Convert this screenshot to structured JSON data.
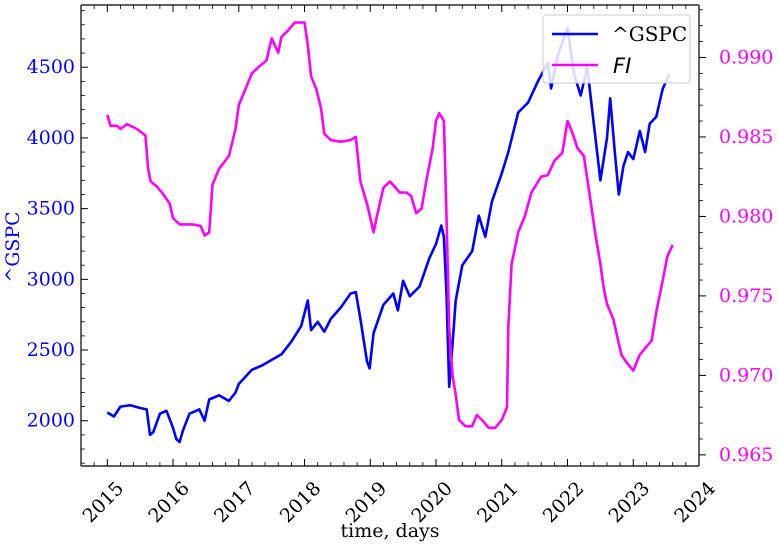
{
  "chart_data": {
    "type": "line",
    "xlabel": "time, days",
    "ylabel_left": "^GSPC",
    "ylabel_right": "",
    "x_ticks": [
      "2015",
      "2016",
      "2017",
      "2018",
      "2019",
      "2020",
      "2021",
      "2022",
      "2023",
      "2024"
    ],
    "y_left_ticks": [
      "2000",
      "2500",
      "3000",
      "3500",
      "4000",
      "4500"
    ],
    "y_right_ticks": [
      "0.965",
      "0.970",
      "0.975",
      "0.980",
      "0.985",
      "0.990"
    ],
    "xlim": [
      2014.6,
      2024.0
    ],
    "ylim_left": [
      1680,
      4940
    ],
    "ylim_right": [
      0.9643,
      0.9933
    ],
    "grid": false,
    "legend_position": "top-right",
    "colors": {
      "left": "#0000ff",
      "right": "#ff00ff"
    },
    "series": [
      {
        "name": "^GSPC",
        "axis": "left",
        "points": [
          [
            2015.0,
            2058
          ],
          [
            2015.1,
            2030
          ],
          [
            2015.2,
            2100
          ],
          [
            2015.35,
            2110
          ],
          [
            2015.5,
            2090
          ],
          [
            2015.6,
            2080
          ],
          [
            2015.65,
            1900
          ],
          [
            2015.7,
            1920
          ],
          [
            2015.8,
            2050
          ],
          [
            2015.9,
            2070
          ],
          [
            2016.0,
            1950
          ],
          [
            2016.05,
            1870
          ],
          [
            2016.1,
            1850
          ],
          [
            2016.15,
            1930
          ],
          [
            2016.25,
            2050
          ],
          [
            2016.4,
            2080
          ],
          [
            2016.48,
            2000
          ],
          [
            2016.55,
            2150
          ],
          [
            2016.7,
            2180
          ],
          [
            2016.85,
            2140
          ],
          [
            2016.95,
            2200
          ],
          [
            2017.0,
            2260
          ],
          [
            2017.2,
            2360
          ],
          [
            2017.35,
            2390
          ],
          [
            2017.5,
            2430
          ],
          [
            2017.65,
            2470
          ],
          [
            2017.8,
            2560
          ],
          [
            2017.95,
            2670
          ],
          [
            2018.05,
            2850
          ],
          [
            2018.1,
            2640
          ],
          [
            2018.2,
            2700
          ],
          [
            2018.3,
            2630
          ],
          [
            2018.4,
            2720
          ],
          [
            2018.55,
            2800
          ],
          [
            2018.7,
            2900
          ],
          [
            2018.78,
            2910
          ],
          [
            2018.85,
            2720
          ],
          [
            2018.95,
            2420
          ],
          [
            2018.99,
            2370
          ],
          [
            2019.05,
            2620
          ],
          [
            2019.2,
            2820
          ],
          [
            2019.35,
            2900
          ],
          [
            2019.42,
            2780
          ],
          [
            2019.5,
            2990
          ],
          [
            2019.6,
            2880
          ],
          [
            2019.75,
            2950
          ],
          [
            2019.9,
            3150
          ],
          [
            2020.0,
            3250
          ],
          [
            2020.08,
            3380
          ],
          [
            2020.12,
            3300
          ],
          [
            2020.16,
            2900
          ],
          [
            2020.2,
            2240
          ],
          [
            2020.24,
            2470
          ],
          [
            2020.3,
            2850
          ],
          [
            2020.4,
            3100
          ],
          [
            2020.55,
            3200
          ],
          [
            2020.65,
            3450
          ],
          [
            2020.75,
            3300
          ],
          [
            2020.85,
            3550
          ],
          [
            2021.0,
            3750
          ],
          [
            2021.1,
            3900
          ],
          [
            2021.25,
            4180
          ],
          [
            2021.4,
            4250
          ],
          [
            2021.55,
            4400
          ],
          [
            2021.7,
            4530
          ],
          [
            2021.75,
            4350
          ],
          [
            2021.85,
            4580
          ],
          [
            2022.0,
            4780
          ],
          [
            2022.1,
            4450
          ],
          [
            2022.2,
            4300
          ],
          [
            2022.3,
            4500
          ],
          [
            2022.4,
            4100
          ],
          [
            2022.45,
            3900
          ],
          [
            2022.5,
            3700
          ],
          [
            2022.6,
            4000
          ],
          [
            2022.65,
            4280
          ],
          [
            2022.72,
            3900
          ],
          [
            2022.78,
            3600
          ],
          [
            2022.85,
            3800
          ],
          [
            2022.92,
            3900
          ],
          [
            2023.0,
            3850
          ],
          [
            2023.1,
            4050
          ],
          [
            2023.18,
            3900
          ],
          [
            2023.25,
            4100
          ],
          [
            2023.35,
            4150
          ],
          [
            2023.45,
            4350
          ],
          [
            2023.55,
            4450
          ]
        ]
      },
      {
        "name": "FI",
        "axis": "right",
        "points": [
          [
            2015.0,
            0.9864
          ],
          [
            2015.05,
            0.9857
          ],
          [
            2015.15,
            0.9857
          ],
          [
            2015.2,
            0.9855
          ],
          [
            2015.3,
            0.9858
          ],
          [
            2015.45,
            0.9855
          ],
          [
            2015.58,
            0.9851
          ],
          [
            2015.62,
            0.983
          ],
          [
            2015.66,
            0.9822
          ],
          [
            2015.75,
            0.9819
          ],
          [
            2015.85,
            0.9814
          ],
          [
            2015.95,
            0.9808
          ],
          [
            2016.0,
            0.9799
          ],
          [
            2016.1,
            0.9795
          ],
          [
            2016.3,
            0.9795
          ],
          [
            2016.42,
            0.9794
          ],
          [
            2016.48,
            0.9788
          ],
          [
            2016.55,
            0.979
          ],
          [
            2016.6,
            0.982
          ],
          [
            2016.7,
            0.983
          ],
          [
            2016.85,
            0.9838
          ],
          [
            2016.95,
            0.9855
          ],
          [
            2017.0,
            0.987
          ],
          [
            2017.1,
            0.988
          ],
          [
            2017.2,
            0.989
          ],
          [
            2017.3,
            0.9894
          ],
          [
            2017.42,
            0.9898
          ],
          [
            2017.5,
            0.9912
          ],
          [
            2017.6,
            0.9903
          ],
          [
            2017.65,
            0.9913
          ],
          [
            2017.75,
            0.9917
          ],
          [
            2017.85,
            0.9922
          ],
          [
            2018.0,
            0.9922
          ],
          [
            2018.05,
            0.9908
          ],
          [
            2018.1,
            0.9888
          ],
          [
            2018.18,
            0.988
          ],
          [
            2018.25,
            0.9868
          ],
          [
            2018.3,
            0.9852
          ],
          [
            2018.4,
            0.9848
          ],
          [
            2018.55,
            0.9847
          ],
          [
            2018.7,
            0.9848
          ],
          [
            2018.78,
            0.985
          ],
          [
            2018.85,
            0.9822
          ],
          [
            2018.95,
            0.9808
          ],
          [
            2019.05,
            0.979
          ],
          [
            2019.1,
            0.98
          ],
          [
            2019.2,
            0.9818
          ],
          [
            2019.3,
            0.9822
          ],
          [
            2019.45,
            0.9815
          ],
          [
            2019.55,
            0.9815
          ],
          [
            2019.62,
            0.9813
          ],
          [
            2019.7,
            0.9802
          ],
          [
            2019.78,
            0.9805
          ],
          [
            2019.85,
            0.9822
          ],
          [
            2019.95,
            0.9843
          ],
          [
            2020.0,
            0.986
          ],
          [
            2020.05,
            0.9865
          ],
          [
            2020.12,
            0.986
          ],
          [
            2020.16,
            0.98
          ],
          [
            2020.2,
            0.973
          ],
          [
            2020.25,
            0.97
          ],
          [
            2020.3,
            0.9688
          ],
          [
            2020.35,
            0.9672
          ],
          [
            2020.45,
            0.9668
          ],
          [
            2020.55,
            0.9668
          ],
          [
            2020.62,
            0.9675
          ],
          [
            2020.7,
            0.9672
          ],
          [
            2020.8,
            0.9667
          ],
          [
            2020.9,
            0.9667
          ],
          [
            2021.0,
            0.9672
          ],
          [
            2021.08,
            0.968
          ],
          [
            2021.1,
            0.973
          ],
          [
            2021.15,
            0.977
          ],
          [
            2021.25,
            0.979
          ],
          [
            2021.35,
            0.98
          ],
          [
            2021.45,
            0.9815
          ],
          [
            2021.6,
            0.9825
          ],
          [
            2021.7,
            0.9826
          ],
          [
            2021.8,
            0.9835
          ],
          [
            2021.92,
            0.984
          ],
          [
            2022.0,
            0.986
          ],
          [
            2022.08,
            0.9852
          ],
          [
            2022.15,
            0.9843
          ],
          [
            2022.25,
            0.9838
          ],
          [
            2022.35,
            0.981
          ],
          [
            2022.42,
            0.979
          ],
          [
            2022.5,
            0.977
          ],
          [
            2022.55,
            0.9755
          ],
          [
            2022.6,
            0.9745
          ],
          [
            2022.7,
            0.9735
          ],
          [
            2022.78,
            0.972
          ],
          [
            2022.82,
            0.9713
          ],
          [
            2022.9,
            0.9708
          ],
          [
            2023.0,
            0.9703
          ],
          [
            2023.1,
            0.9713
          ],
          [
            2023.2,
            0.9718
          ],
          [
            2023.28,
            0.9722
          ],
          [
            2023.35,
            0.974
          ],
          [
            2023.45,
            0.976
          ],
          [
            2023.52,
            0.9775
          ],
          [
            2023.6,
            0.9782
          ]
        ]
      }
    ]
  }
}
